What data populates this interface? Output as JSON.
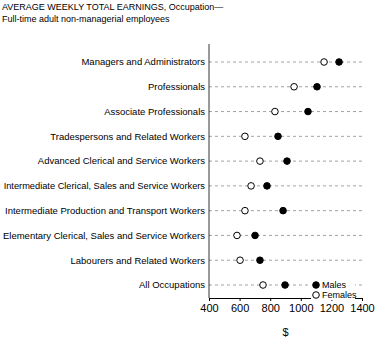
{
  "chart_data": {
    "type": "dot",
    "title": "AVERAGE WEEKLY TOTAL EARNINGS, Occupation—",
    "subtitle": "Full-time adult non-managerial employees",
    "x_label": "$",
    "orientation": "horizontal",
    "categories": [
      "Managers and Administrators",
      "Professionals",
      "Associate Professionals",
      "Tradespersons and Related Workers",
      "Advanced Clerical and Service Workers",
      "Intermediate Clerical, Sales and Service Workers",
      "Intermediate Production and Transport Workers",
      "Elementary Clerical, Sales and Service Workers",
      "Labourers and Related Workers",
      "All Occupations"
    ],
    "series": [
      {
        "name": "Males",
        "color": "#000000",
        "marker": "circle",
        "values": [
          1250,
          1106,
          1047,
          851,
          910,
          779,
          884,
          701,
          733,
          897
        ]
      },
      {
        "name": "Females",
        "color": "#000000",
        "marker": "open-circle",
        "values": [
          1152,
          956,
          831,
          635,
          733,
          675,
          635,
          583,
          603,
          753
        ]
      }
    ],
    "xlim": [
      400,
      1400
    ],
    "xticks": [
      400,
      600,
      800,
      1000,
      1200,
      1400
    ],
    "grid": true,
    "legend": "lower right"
  }
}
